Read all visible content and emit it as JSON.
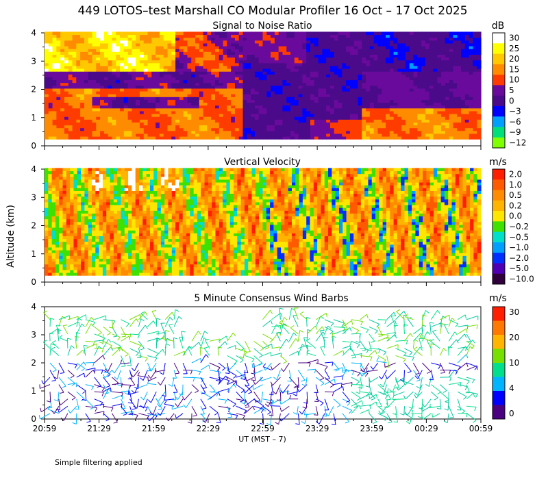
{
  "figure": {
    "title": "449 LOTOS–test Marshall CO Modular Profiler 16 Oct – 17 Oct 2025",
    "ylabel": "Altitude (km)",
    "xlabel": "UT  (MST – 7)",
    "x_ticks": [
      "20:59",
      "21:29",
      "21:59",
      "22:29",
      "22:59",
      "23:29",
      "23:59",
      "00:29",
      "00:59"
    ],
    "y_ticks": [
      "0",
      "1",
      "2",
      "3",
      "4"
    ],
    "footnote": "Simple filtering applied"
  },
  "chart_data": [
    {
      "type": "heatmap",
      "title": "Signal to Noise Ratio",
      "unit": "dB",
      "x_range": [
        "20:59",
        "00:59"
      ],
      "ylim": [
        0,
        4
      ],
      "colorbar": {
        "labels": [
          "30",
          "25",
          "20",
          "15",
          "10",
          "5",
          "0",
          "−3",
          "−6",
          "−9",
          "−12"
        ],
        "colors": [
          "#ffffff",
          "#ffff00",
          "#ffc800",
          "#ff8c00",
          "#ff3c00",
          "#6a0a9c",
          "#4a0a8a",
          "#0000ff",
          "#00a0ff",
          "#00e07a",
          "#80ff00"
        ]
      },
      "description_regions": [
        {
          "altitude_km": [
            0.2,
            2.0
          ],
          "time": [
            "20:59",
            "22:29"
          ],
          "value_range_db": [
            10,
            20
          ]
        },
        {
          "altitude_km": [
            2.5,
            4.0
          ],
          "time": [
            "20:59",
            "22:29"
          ],
          "value_range_db": [
            -12,
            30
          ]
        },
        {
          "altitude_km": [
            0.2,
            4.0
          ],
          "time": [
            "22:59",
            "00:59"
          ],
          "value_range_db": [
            -3,
            5
          ]
        },
        {
          "altitude_km": [
            0.2,
            1.2
          ],
          "time": [
            "23:29",
            "00:59"
          ],
          "value_range_db": [
            10,
            20
          ]
        }
      ]
    },
    {
      "type": "heatmap",
      "title": "Vertical Velocity",
      "unit": "m/s",
      "x_range": [
        "20:59",
        "00:59"
      ],
      "ylim": [
        0,
        4
      ],
      "colorbar": {
        "labels": [
          "2.0",
          "1.0",
          "0.5",
          "0.2",
          "0.0",
          "−0.2",
          "−0.5",
          "−1.0",
          "−2.0",
          "−5.0",
          "−10.0"
        ],
        "colors": [
          "#ff1e00",
          "#ff5a00",
          "#ff8c00",
          "#ffb400",
          "#ffe600",
          "#40e000",
          "#00e0c8",
          "#00a0ff",
          "#0030ff",
          "#5000b4",
          "#30003c"
        ]
      }
    },
    {
      "type": "scatter",
      "title": "5 Minute Consensus Wind Barbs",
      "unit": "m/s",
      "x_range": [
        "20:59",
        "00:59"
      ],
      "ylim": [
        0,
        4
      ],
      "colorbar": {
        "labels": [
          "30",
          "20",
          "10",
          "4",
          "0"
        ],
        "colors": [
          "#ff1e00",
          "#ff7800",
          "#ffb400",
          "#78e000",
          "#00e08c",
          "#00b4ff",
          "#0000ff",
          "#4b0082"
        ]
      }
    }
  ]
}
